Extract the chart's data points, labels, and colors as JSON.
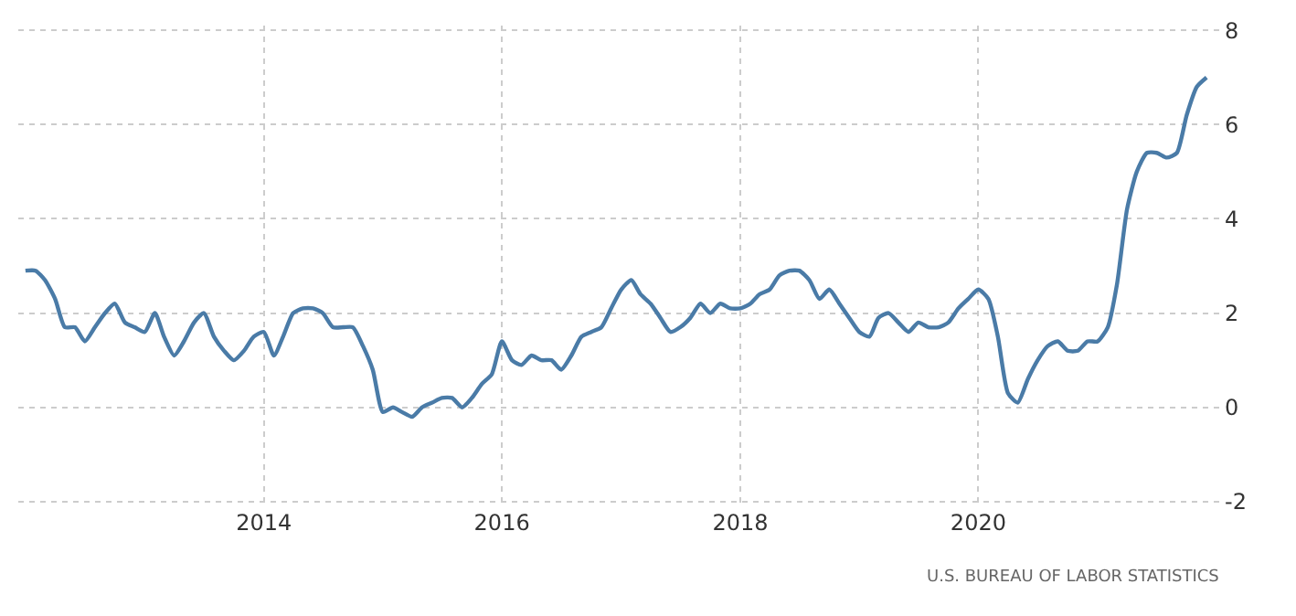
{
  "chart_data": {
    "type": "line",
    "x": [
      "2012-01",
      "2012-02",
      "2012-03",
      "2012-04",
      "2012-05",
      "2012-06",
      "2012-07",
      "2012-08",
      "2012-09",
      "2012-10",
      "2012-11",
      "2012-12",
      "2013-01",
      "2013-02",
      "2013-03",
      "2013-04",
      "2013-05",
      "2013-06",
      "2013-07",
      "2013-08",
      "2013-09",
      "2013-10",
      "2013-11",
      "2013-12",
      "2014-01",
      "2014-02",
      "2014-03",
      "2014-04",
      "2014-05",
      "2014-06",
      "2014-07",
      "2014-08",
      "2014-09",
      "2014-10",
      "2014-11",
      "2014-12",
      "2015-01",
      "2015-02",
      "2015-03",
      "2015-04",
      "2015-05",
      "2015-06",
      "2015-07",
      "2015-08",
      "2015-09",
      "2015-10",
      "2015-11",
      "2015-12",
      "2016-01",
      "2016-02",
      "2016-03",
      "2016-04",
      "2016-05",
      "2016-06",
      "2016-07",
      "2016-08",
      "2016-09",
      "2016-10",
      "2016-11",
      "2016-12",
      "2017-01",
      "2017-02",
      "2017-03",
      "2017-04",
      "2017-05",
      "2017-06",
      "2017-07",
      "2017-08",
      "2017-09",
      "2017-10",
      "2017-11",
      "2017-12",
      "2018-01",
      "2018-02",
      "2018-03",
      "2018-04",
      "2018-05",
      "2018-06",
      "2018-07",
      "2018-08",
      "2018-09",
      "2018-10",
      "2018-11",
      "2018-12",
      "2019-01",
      "2019-02",
      "2019-03",
      "2019-04",
      "2019-05",
      "2019-06",
      "2019-07",
      "2019-08",
      "2019-09",
      "2019-10",
      "2019-11",
      "2019-12",
      "2020-01",
      "2020-02",
      "2020-03",
      "2020-04",
      "2020-05",
      "2020-06",
      "2020-07",
      "2020-08",
      "2020-09",
      "2020-10",
      "2020-11",
      "2020-12",
      "2021-01",
      "2021-02",
      "2021-03",
      "2021-04",
      "2021-05",
      "2021-06",
      "2021-07",
      "2021-08",
      "2021-09",
      "2021-10",
      "2021-11",
      "2021-12"
    ],
    "series": [
      {
        "color": "#4a7ba7",
        "values": [
          2.9,
          2.9,
          2.7,
          2.3,
          1.7,
          1.7,
          1.4,
          1.7,
          2.0,
          2.2,
          1.8,
          1.7,
          1.6,
          2.0,
          1.5,
          1.1,
          1.4,
          1.8,
          2.0,
          1.5,
          1.2,
          1.0,
          1.2,
          1.5,
          1.6,
          1.1,
          1.5,
          2.0,
          2.1,
          2.1,
          2.0,
          1.7,
          1.7,
          1.7,
          1.3,
          0.8,
          -0.1,
          0.0,
          -0.1,
          -0.2,
          0.0,
          0.1,
          0.2,
          0.2,
          0.0,
          0.2,
          0.5,
          0.7,
          1.4,
          1.0,
          0.9,
          1.1,
          1.0,
          1.0,
          0.8,
          1.1,
          1.5,
          1.6,
          1.7,
          2.1,
          2.5,
          2.7,
          2.4,
          2.2,
          1.9,
          1.6,
          1.7,
          1.9,
          2.2,
          2.0,
          2.2,
          2.1,
          2.1,
          2.2,
          2.4,
          2.5,
          2.8,
          2.9,
          2.9,
          2.7,
          2.3,
          2.5,
          2.2,
          1.9,
          1.6,
          1.5,
          1.9,
          2.0,
          1.8,
          1.6,
          1.8,
          1.7,
          1.7,
          1.8,
          2.1,
          2.3,
          2.5,
          2.3,
          1.5,
          0.3,
          0.1,
          0.6,
          1.0,
          1.3,
          1.4,
          1.2,
          1.2,
          1.4,
          1.4,
          1.7,
          2.6,
          4.2,
          5.0,
          5.4,
          5.4,
          5.3,
          5.4,
          6.2,
          6.8,
          7.0
        ]
      }
    ],
    "xlim": [
      "2011-12-10",
      "2022-01-20"
    ],
    "xticks": [
      {
        "value": "2014-01-01",
        "label": "2014"
      },
      {
        "value": "2016-01-01",
        "label": "2016"
      },
      {
        "value": "2018-01-01",
        "label": "2018"
      },
      {
        "value": "2020-01-01",
        "label": "2020"
      }
    ],
    "ylim": [
      -2.1,
      8.1
    ],
    "yticks": [
      -2,
      0,
      2,
      4,
      6,
      8
    ],
    "grid": true,
    "legend": false,
    "marker": "none",
    "line_style": "solid",
    "annotations": [
      "U.S. BUREAU OF LABOR STATISTICS"
    ]
  }
}
